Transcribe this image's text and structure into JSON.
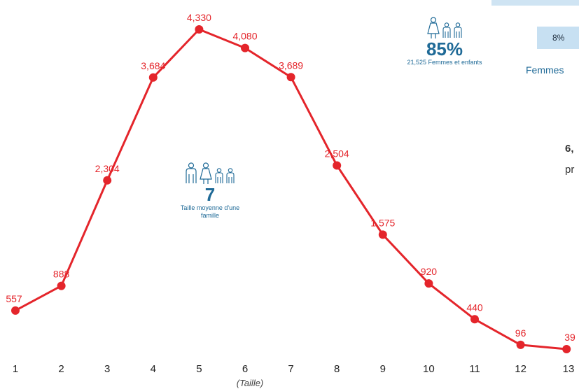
{
  "chart_data": {
    "type": "line",
    "x": [
      1,
      2,
      3,
      4,
      5,
      6,
      7,
      8,
      9,
      10,
      11,
      12,
      13
    ],
    "values": [
      557,
      888,
      2304,
      3684,
      4330,
      4080,
      3689,
      2504,
      1575,
      920,
      440,
      96,
      39
    ],
    "value_labels": [
      "557",
      "888",
      "2,304",
      "3,684",
      "4,330",
      "4,080",
      "3,689",
      "2,504",
      "1,575",
      "920",
      "440",
      "96",
      "39"
    ],
    "xlabel": "(Taille)",
    "color": "#e4252b",
    "ylim": [
      0,
      4330
    ],
    "grid": false
  },
  "stat_avg": {
    "value": "7",
    "caption": "Taille moyenne d'une famille"
  },
  "stat_women": {
    "value": "85%",
    "caption": "21,525 Femmes et enfants"
  },
  "side_pct": "8%",
  "side_label": "Femmes",
  "side_text_1": "6,",
  "side_text_2": "pr",
  "colors": {
    "line": "#e4252b",
    "accent": "#1f6a97",
    "box": "#c7e0f2"
  },
  "icons": [
    "man-icon",
    "woman-icon",
    "child-icon"
  ]
}
